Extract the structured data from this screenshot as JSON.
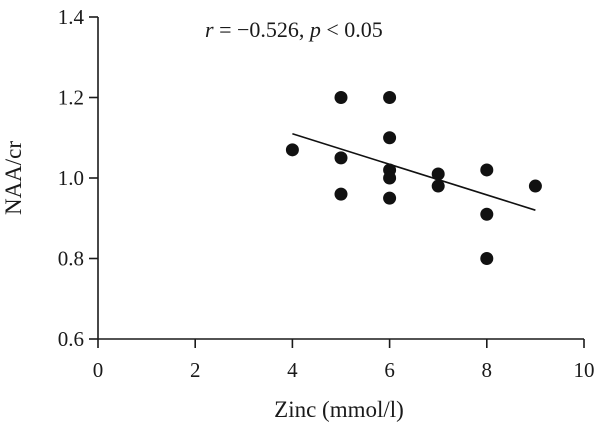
{
  "chart_data": {
    "type": "scatter",
    "xlabel": "Zinc (mmol/l)",
    "ylabel": "NAA/cr",
    "xlim": [
      0,
      10
    ],
    "ylim": [
      0.6,
      1.4
    ],
    "xticks": [
      "0",
      "2",
      "4",
      "6",
      "8",
      "10"
    ],
    "yticks": [
      "0.6",
      "0.8",
      "1.0",
      "1.2",
      "1.4"
    ],
    "grid": false,
    "annotation": {
      "r_symbol": "r",
      "r_text": " = −0.526, ",
      "p_symbol": "p",
      "p_text": " < 0.05"
    },
    "points": [
      {
        "x": 4,
        "y": 1.07
      },
      {
        "x": 5,
        "y": 1.2
      },
      {
        "x": 5,
        "y": 1.05
      },
      {
        "x": 5,
        "y": 0.96
      },
      {
        "x": 6,
        "y": 1.2
      },
      {
        "x": 6,
        "y": 1.1
      },
      {
        "x": 6,
        "y": 1.02
      },
      {
        "x": 6,
        "y": 1.0
      },
      {
        "x": 6,
        "y": 0.95
      },
      {
        "x": 7,
        "y": 1.01
      },
      {
        "x": 7,
        "y": 0.98
      },
      {
        "x": 8,
        "y": 1.02
      },
      {
        "x": 8,
        "y": 0.91
      },
      {
        "x": 8,
        "y": 0.8
      },
      {
        "x": 9,
        "y": 0.98
      }
    ],
    "fit_line": {
      "x": [
        4,
        9
      ],
      "y": [
        1.11,
        0.92
      ]
    }
  }
}
